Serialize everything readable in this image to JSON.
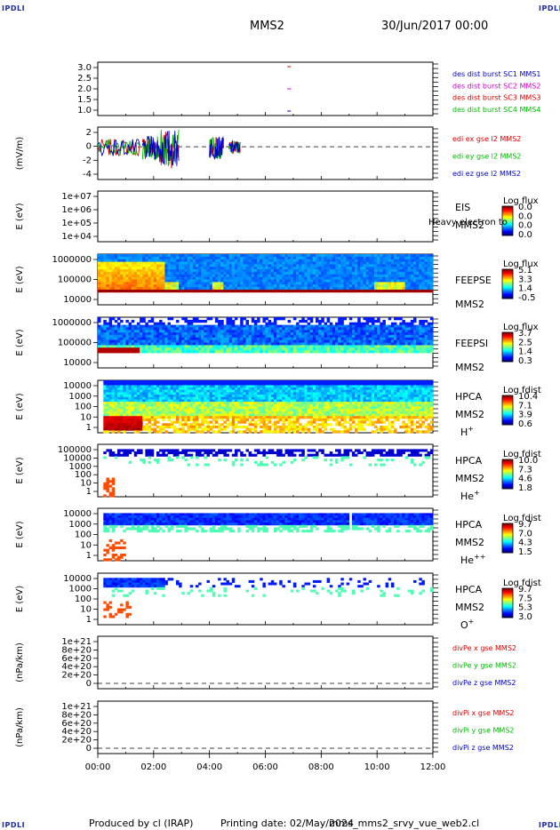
{
  "header": {
    "corner_label": "IPDLI",
    "spacecraft": "MMS2",
    "datetime": "30/Jun/2017 00:00"
  },
  "footer": {
    "produced_by": "Produced by cl (IRAP)",
    "printing_date": "Printing date: 02/May/2024",
    "script_name": "mms_mms2_srvy_vue_web2.cl"
  },
  "colors": {
    "frame": "#000000",
    "blue": "#0000cc",
    "red": "#dd0000",
    "green": "#00bb00",
    "magenta": "#cc00cc"
  },
  "chart_data": [
    {
      "type": "scatter",
      "panel": "dist-burst",
      "y_ticks": [
        "3.0",
        "2.5",
        "2.0",
        "1.5",
        "1.0"
      ],
      "ylim": [
        0.8,
        3.2
      ],
      "legend": [
        {
          "text": "des dist burst SC1 MMS1",
          "color": "#0000cc"
        },
        {
          "text": "des dist burst SC2 MMS2",
          "color": "#cc00cc"
        },
        {
          "text": "des dist burst SC3 MMS3",
          "color": "#dd0000"
        },
        {
          "text": "des dist burst SC4 MMS4",
          "color": "#00bb00"
        }
      ],
      "points": [
        {
          "x": 6.85,
          "y": 3.0,
          "color": "#cc0000"
        },
        {
          "x": 6.85,
          "y": 2.0,
          "color": "#cc00cc"
        },
        {
          "x": 6.85,
          "y": 1.0,
          "color": "#0000cc"
        }
      ]
    },
    {
      "type": "line",
      "panel": "electric-field",
      "ylabel": "(mV/m)",
      "y_ticks": [
        "2",
        "0",
        "-2",
        "-4"
      ],
      "ylim": [
        -5,
        3
      ],
      "zero_line": true,
      "legend": [
        {
          "text": "edi ex gse l2 MMS2",
          "color": "#dd0000"
        },
        {
          "text": "edi ey gse l2 MMS2",
          "color": "#00bb00"
        },
        {
          "text": "edi ez gse l2 MMS2",
          "color": "#0000cc"
        }
      ]
    },
    {
      "type": "heatmap",
      "panel": "EIS",
      "ylabel": "E (eV)",
      "y_ticks": [
        "1e+07",
        "1e+06",
        "1e+05",
        "1e+04"
      ],
      "instrument": "EIS",
      "species": "Heavy electron to",
      "sc": "MMS2",
      "cbar_title": "Log flux",
      "cbar_ticks": [
        "0.0",
        "0.0",
        "0.0",
        "0.0"
      ]
    },
    {
      "type": "heatmap",
      "panel": "FEEPSE",
      "ylabel": "E (eV)",
      "y_ticks": [
        "1000000",
        "100000",
        "10000"
      ],
      "instrument": "FEEPSE",
      "sc": "MMS2",
      "cbar_title": "Log flux",
      "cbar_ticks": [
        "5.1",
        "3.3",
        "1.4",
        "-0.5"
      ]
    },
    {
      "type": "heatmap",
      "panel": "FEEPSI",
      "ylabel": "E (eV)",
      "y_ticks": [
        "1000000",
        "100000",
        "10000"
      ],
      "instrument": "FEEPSI",
      "sc": "MMS2",
      "cbar_title": "Log flux",
      "cbar_ticks": [
        "3.7",
        "2.5",
        "1.4",
        "0.3"
      ]
    },
    {
      "type": "heatmap",
      "panel": "HPCA-H",
      "ylabel": "E (eV)",
      "y_ticks": [
        "10000",
        "1000",
        "100",
        "10",
        "1"
      ],
      "instrument": "HPCA",
      "sc": "MMS2",
      "species": "H",
      "species_sup": "+",
      "cbar_title": "Log fdist",
      "cbar_ticks": [
        "10.4",
        "7.1",
        "3.9",
        "0.6"
      ]
    },
    {
      "type": "heatmap",
      "panel": "HPCA-He1",
      "ylabel": "E (eV)",
      "y_ticks": [
        "100000",
        "10000",
        "1000",
        "100",
        "10",
        "1"
      ],
      "instrument": "HPCA",
      "sc": "MMS2",
      "species": "He",
      "species_sup": "+",
      "cbar_title": "Log fdist",
      "cbar_ticks": [
        "10.0",
        "7.3",
        "4.6",
        "1.8"
      ]
    },
    {
      "type": "heatmap",
      "panel": "HPCA-He2",
      "ylabel": "E (eV)",
      "y_ticks": [
        "10000",
        "1000",
        "100",
        "10",
        "1"
      ],
      "instrument": "HPCA",
      "sc": "MMS2",
      "species": "He",
      "species_sup": "++",
      "cbar_title": "Log fdist",
      "cbar_ticks": [
        "9.7",
        "7.0",
        "4.3",
        "1.5"
      ]
    },
    {
      "type": "heatmap",
      "panel": "HPCA-O",
      "ylabel": "E (eV)",
      "y_ticks": [
        "10000",
        "1000",
        "100",
        "10",
        "1"
      ],
      "instrument": "HPCA",
      "sc": "MMS2",
      "species": "O",
      "species_sup": "+",
      "cbar_title": "Log fdist",
      "cbar_ticks": [
        "9.7",
        "7.5",
        "5.3",
        "3.0"
      ]
    },
    {
      "type": "line",
      "panel": "divPe",
      "ylabel": "(nPa/km)",
      "y_ticks": [
        "1e+21",
        "8e+20",
        "6e+20",
        "4e+20",
        "2e+20",
        "0"
      ],
      "zero_line": true,
      "legend": [
        {
          "text": "divPe x gse MMS2",
          "color": "#dd0000"
        },
        {
          "text": "divPe y gse MMS2",
          "color": "#00bb00"
        },
        {
          "text": "divPe z gse MMS2",
          "color": "#0000cc"
        }
      ]
    },
    {
      "type": "line",
      "panel": "divPi",
      "ylabel": "(nPa/km)",
      "y_ticks": [
        "1e+21",
        "8e+20",
        "6e+20",
        "4e+20",
        "2e+20",
        "0"
      ],
      "zero_line": true,
      "legend": [
        {
          "text": "divPi x gse MMS2",
          "color": "#dd0000"
        },
        {
          "text": "divPi y gse MMS2",
          "color": "#00bb00"
        },
        {
          "text": "divPi z gse MMS2",
          "color": "#0000cc"
        }
      ]
    }
  ],
  "x_axis": {
    "ticks": [
      "00:00",
      "02:00",
      "04:00",
      "06:00",
      "08:00",
      "10:00",
      "12:00"
    ],
    "xlim_hours": [
      0,
      12
    ]
  }
}
